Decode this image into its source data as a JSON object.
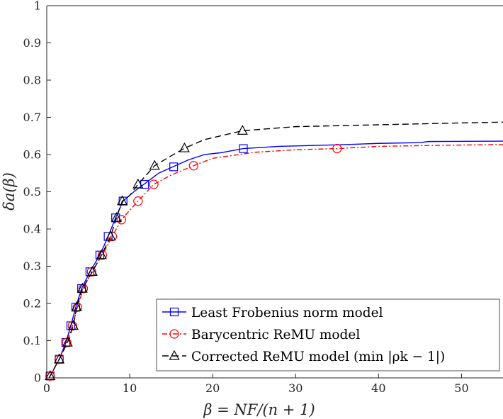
{
  "chart_data": {
    "type": "line",
    "title": "",
    "xlabel": "β = NF/(n + 1)",
    "ylabel": "δa(β)",
    "xlim": [
      0,
      55
    ],
    "ylim": [
      0,
      1
    ],
    "xticks": [
      0,
      10,
      20,
      30,
      40,
      50
    ],
    "yticks": [
      0,
      0.1,
      0.2,
      0.3,
      0.4,
      0.5,
      0.6,
      0.7,
      0.8,
      0.9,
      1
    ],
    "xtick_labels": [
      "0",
      "10",
      "20",
      "30",
      "40",
      "50"
    ],
    "ytick_labels": [
      "0",
      "0.1",
      "0.2",
      "0.3",
      "0.4",
      "0.5",
      "0.6",
      "0.7",
      "0.8",
      "0.9",
      "1"
    ],
    "grid": false,
    "legend_position": "bottom-right",
    "series": [
      {
        "name": "Least Frobenius norm model",
        "color": "#0000ff",
        "line_style": "solid",
        "marker": "square",
        "curve": [
          [
            0.3,
            0
          ],
          [
            0.4,
            0.005
          ],
          [
            1.5,
            0.05
          ],
          [
            2.3,
            0.095
          ],
          [
            2.9,
            0.14
          ],
          [
            3.5,
            0.19
          ],
          [
            4.2,
            0.24
          ],
          [
            5.2,
            0.285
          ],
          [
            6.4,
            0.33
          ],
          [
            7.4,
            0.38
          ],
          [
            8.3,
            0.43
          ],
          [
            9.2,
            0.475
          ],
          [
            10.5,
            0.5
          ],
          [
            12.0,
            0.525
          ],
          [
            13.5,
            0.55
          ],
          [
            15.5,
            0.57
          ],
          [
            17,
            0.585
          ],
          [
            19,
            0.6
          ],
          [
            21,
            0.605
          ],
          [
            23.7,
            0.616
          ],
          [
            28,
            0.622
          ],
          [
            35,
            0.626
          ],
          [
            40,
            0.63
          ],
          [
            45,
            0.632
          ],
          [
            46,
            0.635
          ],
          [
            55,
            0.636
          ]
        ],
        "markers": [
          [
            0.4,
            0.005
          ],
          [
            1.5,
            0.05
          ],
          [
            2.3,
            0.095
          ],
          [
            2.9,
            0.14
          ],
          [
            3.5,
            0.19
          ],
          [
            4.2,
            0.24
          ],
          [
            5.2,
            0.285
          ],
          [
            6.4,
            0.33
          ],
          [
            7.4,
            0.38
          ],
          [
            8.3,
            0.43
          ],
          [
            9.2,
            0.475
          ],
          [
            11.8,
            0.52
          ],
          [
            15.3,
            0.567
          ],
          [
            23.7,
            0.616
          ]
        ]
      },
      {
        "name": "Barycentric ReMU model",
        "color": "#ff0000",
        "line_style": "dash-dot",
        "marker": "circle",
        "curve": [
          [
            0.3,
            0
          ],
          [
            0.4,
            0.005
          ],
          [
            1.5,
            0.05
          ],
          [
            2.4,
            0.095
          ],
          [
            3.1,
            0.14
          ],
          [
            3.7,
            0.19
          ],
          [
            4.4,
            0.24
          ],
          [
            5.4,
            0.285
          ],
          [
            6.7,
            0.33
          ],
          [
            7.9,
            0.38
          ],
          [
            9.0,
            0.425
          ],
          [
            10.0,
            0.45
          ],
          [
            11.0,
            0.475
          ],
          [
            12.9,
            0.52
          ],
          [
            15,
            0.545
          ],
          [
            17.7,
            0.57
          ],
          [
            20,
            0.59
          ],
          [
            25,
            0.606
          ],
          [
            30,
            0.613
          ],
          [
            35,
            0.616
          ],
          [
            40,
            0.622
          ],
          [
            45,
            0.624
          ],
          [
            55,
            0.627
          ]
        ],
        "markers": [
          [
            0.4,
            0.005
          ],
          [
            1.5,
            0.05
          ],
          [
            2.4,
            0.095
          ],
          [
            3.1,
            0.14
          ],
          [
            3.7,
            0.19
          ],
          [
            4.4,
            0.24
          ],
          [
            5.4,
            0.285
          ],
          [
            6.7,
            0.33
          ],
          [
            7.9,
            0.38
          ],
          [
            9.0,
            0.425
          ],
          [
            11.0,
            0.475
          ],
          [
            12.9,
            0.52
          ],
          [
            17.7,
            0.57
          ],
          [
            35.0,
            0.616
          ]
        ]
      },
      {
        "name": "Corrected ReMU model (min |ρk − 1|)",
        "color": "#000000",
        "line_style": "dashed",
        "marker": "triangle",
        "curve": [
          [
            0.3,
            0
          ],
          [
            0.4,
            0.005
          ],
          [
            1.5,
            0.05
          ],
          [
            2.5,
            0.095
          ],
          [
            3.2,
            0.14
          ],
          [
            3.6,
            0.19
          ],
          [
            4.3,
            0.24
          ],
          [
            5.5,
            0.285
          ],
          [
            6.6,
            0.33
          ],
          [
            7.7,
            0.38
          ],
          [
            8.4,
            0.43
          ],
          [
            9.1,
            0.475
          ],
          [
            10.0,
            0.49
          ],
          [
            11.0,
            0.52
          ],
          [
            13.0,
            0.57
          ],
          [
            14.5,
            0.59
          ],
          [
            16.6,
            0.617
          ],
          [
            19,
            0.64
          ],
          [
            23.6,
            0.664
          ],
          [
            30,
            0.675
          ],
          [
            40,
            0.68
          ],
          [
            50,
            0.685
          ],
          [
            55,
            0.687
          ]
        ],
        "markers": [
          [
            0.4,
            0.005
          ],
          [
            1.5,
            0.05
          ],
          [
            2.5,
            0.095
          ],
          [
            3.2,
            0.14
          ],
          [
            3.6,
            0.19
          ],
          [
            4.3,
            0.24
          ],
          [
            5.5,
            0.285
          ],
          [
            6.6,
            0.33
          ],
          [
            7.7,
            0.38
          ],
          [
            8.4,
            0.43
          ],
          [
            9.1,
            0.475
          ],
          [
            11.0,
            0.52
          ],
          [
            13.0,
            0.57
          ],
          [
            16.6,
            0.617
          ],
          [
            23.6,
            0.664
          ]
        ]
      }
    ]
  }
}
